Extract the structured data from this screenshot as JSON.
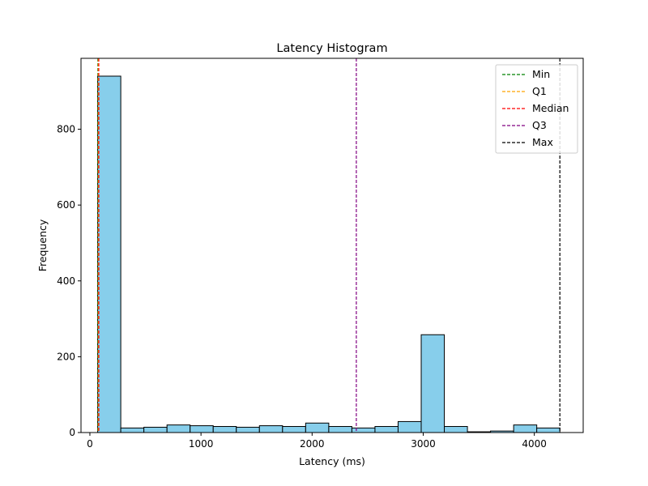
{
  "chart_data": {
    "type": "bar",
    "title": "Latency Histogram",
    "xlabel": "Latency (ms)",
    "ylabel": "Frequency",
    "xlim": [
      -80,
      4440
    ],
    "ylim": [
      0,
      987
    ],
    "xticks": [
      0,
      1000,
      2000,
      3000,
      4000
    ],
    "xtick_labels": [
      "0",
      "1000",
      "2000",
      "3000",
      "4000"
    ],
    "yticks": [
      0,
      200,
      400,
      600,
      800
    ],
    "ytick_labels": [
      "0",
      "200",
      "400",
      "600",
      "800"
    ],
    "grid": false,
    "legend_position": "top-right",
    "bar_color": "#87ceeb",
    "bar_edge_color": "#000000",
    "bins": [
      {
        "x0": 70,
        "x1": 278,
        "value": 940
      },
      {
        "x0": 278,
        "x1": 486,
        "value": 12
      },
      {
        "x0": 486,
        "x1": 694,
        "value": 14
      },
      {
        "x0": 694,
        "x1": 902,
        "value": 20
      },
      {
        "x0": 902,
        "x1": 1110,
        "value": 18
      },
      {
        "x0": 1110,
        "x1": 1318,
        "value": 16
      },
      {
        "x0": 1318,
        "x1": 1526,
        "value": 14
      },
      {
        "x0": 1526,
        "x1": 1734,
        "value": 18
      },
      {
        "x0": 1734,
        "x1": 1942,
        "value": 16
      },
      {
        "x0": 1942,
        "x1": 2150,
        "value": 25
      },
      {
        "x0": 2150,
        "x1": 2358,
        "value": 16
      },
      {
        "x0": 2358,
        "x1": 2566,
        "value": 12
      },
      {
        "x0": 2566,
        "x1": 2774,
        "value": 16
      },
      {
        "x0": 2774,
        "x1": 2982,
        "value": 29
      },
      {
        "x0": 2982,
        "x1": 3190,
        "value": 258
      },
      {
        "x0": 3190,
        "x1": 3398,
        "value": 16
      },
      {
        "x0": 3398,
        "x1": 3606,
        "value": 2
      },
      {
        "x0": 3606,
        "x1": 3814,
        "value": 4
      },
      {
        "x0": 3814,
        "x1": 4022,
        "value": 20
      },
      {
        "x0": 4022,
        "x1": 4230,
        "value": 12
      }
    ],
    "reference_lines": [
      {
        "name": "Min",
        "x": 72,
        "color": "#008000"
      },
      {
        "name": "Q1",
        "x": 76,
        "color": "#ffa500"
      },
      {
        "name": "Median",
        "x": 80,
        "color": "#ff0000"
      },
      {
        "name": "Q3",
        "x": 2398,
        "color": "#800080"
      },
      {
        "name": "Max",
        "x": 4230,
        "color": "#000000"
      }
    ]
  }
}
